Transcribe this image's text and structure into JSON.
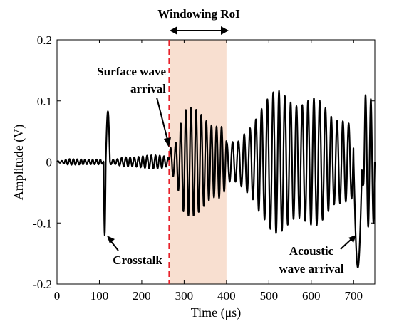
{
  "chart_data": {
    "type": "line",
    "xlabel": "Time (μs)",
    "ylabel": "Amplitude (V)",
    "xlim": [
      0,
      750
    ],
    "ylim": [
      -0.2,
      0.2
    ],
    "x_ticks": [
      "0",
      "100",
      "200",
      "300",
      "400",
      "500",
      "600",
      "700"
    ],
    "y_ticks": [
      "-0.2",
      "-0.1",
      "0",
      "0.1",
      "0.2"
    ],
    "grid": false,
    "series": [
      {
        "color": "#000000",
        "segments": [
          {
            "x0": 0,
            "x1": 110,
            "freq": 0.11,
            "amp": 0.005
          },
          {
            "x0": 110,
            "x1": 115,
            "spike": -0.12
          },
          {
            "x0": 115,
            "x1": 125,
            "spike": 0.083
          },
          {
            "x0": 125,
            "x1": 265,
            "freq": 0.1,
            "amp": 0.013
          },
          {
            "x0": 265,
            "x1": 400,
            "freq": 0.083,
            "amp": 0.09
          },
          {
            "x0": 400,
            "x1": 700,
            "freq": 0.073,
            "amp": 0.12
          },
          {
            "x0": 700,
            "x1": 720,
            "spike": -0.173
          },
          {
            "x0": 720,
            "x1": 750,
            "freq": 0.08,
            "amp": 0.13
          }
        ]
      }
    ],
    "markers": [
      {
        "type": "vline",
        "x": 265,
        "color": "#e8222a",
        "style": "dashed"
      },
      {
        "type": "region",
        "x0": 267,
        "x1": 400,
        "color": "#f8dfd0"
      }
    ],
    "annotations": {
      "roi": "Windowing  RoI",
      "surface_line1": "Surface wave",
      "surface_line2": "arrival",
      "crosstalk": "Crosstalk",
      "acoustic_line1": "Acoustic",
      "acoustic_line2": "wave arrival"
    }
  }
}
